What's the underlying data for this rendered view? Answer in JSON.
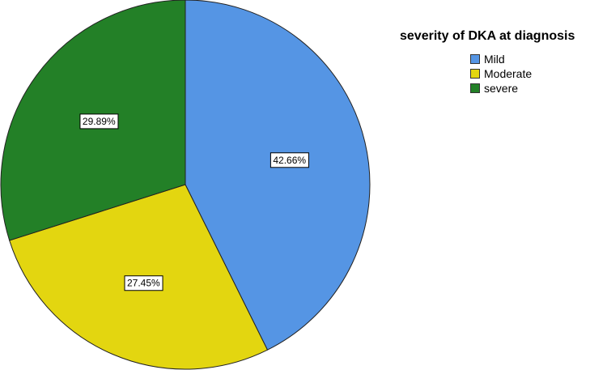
{
  "chart_data": {
    "type": "pie",
    "title": "",
    "legend_title": "severity of DKA at diagnosis",
    "legend_position": "top-right",
    "categories": [
      "Mild",
      "Moderate",
      "severe"
    ],
    "values": [
      42.66,
      27.45,
      29.89
    ],
    "labels": [
      "42.66%",
      "27.45%",
      "29.89%"
    ],
    "colors": [
      "#5595e4",
      "#e3d610",
      "#238027"
    ],
    "start_angle_deg": 0,
    "direction": "clockwise"
  }
}
